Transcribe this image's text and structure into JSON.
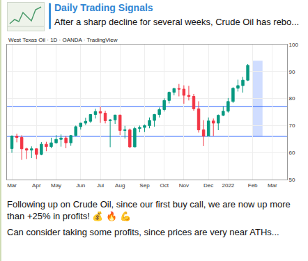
{
  "header": {
    "title": "Daily Trading Signals",
    "subtitle": "After a sharp decline for several weeks, Crude Oil has rebo..."
  },
  "chart_data": {
    "type": "candlestick",
    "title": "West Texas Oil · 1D · OANDA · TradingView",
    "categories": [
      "Mar",
      null,
      null,
      null,
      null,
      "Apr",
      null,
      null,
      null,
      "May",
      null,
      null,
      null,
      null,
      "Jun",
      null,
      null,
      null,
      "Jul",
      null,
      null,
      null,
      "Aug",
      null,
      null,
      null,
      null,
      "Sep",
      null,
      null,
      null,
      "Oct",
      null,
      null,
      null,
      "Nov",
      null,
      null,
      null,
      null,
      "Dec",
      null,
      null,
      null,
      "2022",
      null,
      null,
      null,
      null,
      "Feb",
      null,
      null,
      null,
      "Mar",
      null,
      null
    ],
    "series": [
      {
        "color": "#089981",
        "open": [
          61.5,
          66.1,
          65.6,
          61.4,
          60.9,
          61.4,
          59.3,
          63.1,
          62.2,
          63.6,
          64.9,
          65.4,
          63.6,
          66.3,
          69.6,
          70.9,
          71.6,
          74.1,
          75.2,
          74.6,
          71.8,
          72.1,
          73.9,
          68.2,
          68.4,
          62.1,
          68.9,
          69.3,
          70.0,
          71.9,
          74.1,
          75.9,
          79.3,
          82.3,
          83.7,
          83.5,
          81.2,
          80.8,
          76.2,
          68.4,
          66.1,
          71.7,
          70.9,
          73.8,
          75.3,
          78.9,
          83.8,
          84.8,
          86.8,
          null,
          null,
          null,
          null,
          null,
          null,
          null
        ],
        "high": [
          66.4,
          67.0,
          66.4,
          61.8,
          62.3,
          61.6,
          63.9,
          64.0,
          65.5,
          66.5,
          66.7,
          66.2,
          66.5,
          70.0,
          71.0,
          72.9,
          74.2,
          76.2,
          77.0,
          75.5,
          72.4,
          74.0,
          74.0,
          69.9,
          68.9,
          69.6,
          70.0,
          70.4,
          73.0,
          74.3,
          76.7,
          80.1,
          82.6,
          84.0,
          85.4,
          84.9,
          84.7,
          81.7,
          79.0,
          72.0,
          73.0,
          72.6,
          74.1,
          77.2,
          80.2,
          84.2,
          87.0,
          88.0,
          92.8,
          null,
          null,
          null,
          null,
          null,
          null,
          null
        ],
        "low": [
          59.9,
          63.8,
          57.3,
          57.6,
          58.0,
          57.6,
          59.0,
          60.5,
          61.6,
          63.3,
          62.2,
          61.6,
          62.5,
          66.0,
          68.5,
          70.2,
          71.0,
          72.6,
          71.0,
          70.8,
          62.0,
          70.6,
          66.5,
          65.2,
          61.7,
          62.0,
          67.5,
          67.6,
          69.0,
          69.6,
          73.0,
          75.2,
          78.2,
          81.2,
          80.8,
          78.1,
          79.3,
          75.5,
          67.4,
          62.4,
          66.0,
          66.1,
          68.3,
          73.5,
          74.8,
          78.4,
          82.6,
          82.2,
          86.5,
          null,
          null,
          null,
          null,
          null,
          null,
          null
        ],
        "close": [
          66.1,
          65.6,
          61.4,
          60.9,
          61.4,
          59.3,
          63.1,
          62.2,
          63.6,
          64.9,
          65.4,
          63.6,
          66.3,
          69.6,
          70.9,
          71.6,
          74.1,
          75.2,
          74.6,
          71.8,
          72.1,
          73.9,
          68.2,
          68.4,
          62.1,
          68.9,
          69.3,
          70.0,
          71.9,
          74.1,
          75.9,
          79.3,
          82.3,
          83.7,
          83.5,
          81.2,
          80.8,
          76.2,
          68.4,
          66.1,
          71.7,
          70.9,
          73.8,
          75.3,
          78.9,
          83.8,
          84.8,
          86.8,
          92.3,
          null,
          null,
          null,
          null,
          null,
          null,
          null
        ]
      }
    ],
    "levels": [
      77,
      66
    ],
    "long_position": {
      "from": 49,
      "to": 51,
      "entry": 66,
      "target": 94
    },
    "ylim": [
      50,
      100
    ],
    "yticks": [
      50,
      60,
      70,
      80,
      90,
      100
    ],
    "grid": true
  },
  "message": {
    "paragraphs": [
      "Following up on Crude Oil, since our first buy call, we are now up more than +25% in profits! 💰 🔥 💪",
      "Can consider taking some profits, since prices are very near ATHs..."
    ]
  }
}
